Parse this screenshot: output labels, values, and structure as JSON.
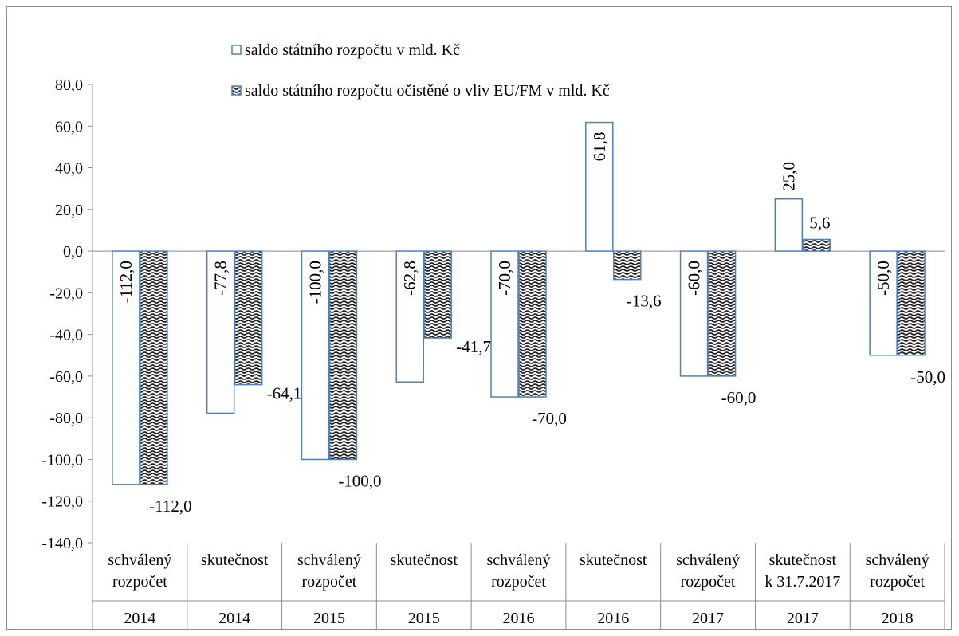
{
  "chart_data": {
    "type": "bar",
    "title": "",
    "xlabel": "",
    "ylabel": "",
    "ylim": [
      -140,
      80
    ],
    "ytick_step": 20,
    "ytick_labels": [
      "80,0",
      "60,0",
      "40,0",
      "20,0",
      "0,0",
      "-20,0",
      "-40,0",
      "-60,0",
      "-80,0",
      "-100,0",
      "-120,0",
      "-140,0"
    ],
    "categories": [
      {
        "label": [
          "schválený",
          "rozpočet"
        ],
        "year": "2014"
      },
      {
        "label": [
          "skutečnost"
        ],
        "year": "2014"
      },
      {
        "label": [
          "schválený",
          "rozpočet"
        ],
        "year": "2015"
      },
      {
        "label": [
          "skutečnost"
        ],
        "year": "2015"
      },
      {
        "label": [
          "schválený",
          "rozpočet"
        ],
        "year": "2016"
      },
      {
        "label": [
          "skutečnost"
        ],
        "year": "2016"
      },
      {
        "label": [
          "schválený",
          "rozpočet"
        ],
        "year": "2017"
      },
      {
        "label": [
          "skutečnost",
          "k 31.7.2017"
        ],
        "year": "2017"
      },
      {
        "label": [
          "schválený",
          "rozpočet"
        ],
        "year": "2018"
      }
    ],
    "series": [
      {
        "name": "saldo státního rozpočtu v mld. Kč",
        "values": [
          -112.0,
          -77.8,
          -100.0,
          -62.8,
          -70.0,
          61.8,
          -60.0,
          25.0,
          -50.0
        ],
        "value_labels": [
          "-112,0",
          "-77,8",
          "-100,0",
          "-62,8",
          "-70,0",
          "61,8",
          "-60,0",
          "25,0",
          "-50,0"
        ],
        "fill": "#ffffff",
        "stroke": "#4f81bd"
      },
      {
        "name": "saldo státního rozpočtu očistěné o vliv EU/FM v mld. Kč",
        "values": [
          -112.0,
          -64.1,
          -100.0,
          -41.7,
          -70.0,
          -13.6,
          -60.0,
          5.6,
          -50.0
        ],
        "value_labels": [
          "-112,0",
          "-64,1",
          "-100,0",
          "-41,7",
          "-70,0",
          "-13,6",
          "-60,0",
          "5,6",
          "-50,0"
        ],
        "pattern": "wave",
        "stroke": "#4f81bd"
      }
    ],
    "grid": false,
    "legend_position": "top"
  }
}
